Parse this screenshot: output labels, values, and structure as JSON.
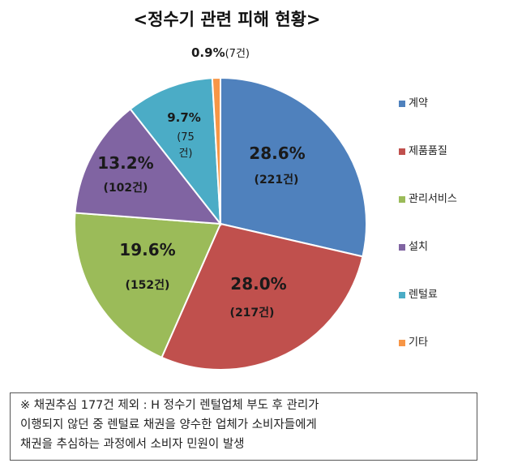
{
  "chart_data": {
    "type": "pie",
    "title": "<정수기 관련 피해 현황>",
    "slices": [
      {
        "name": "계약",
        "percent": "28.6%",
        "count": "(221건)",
        "value": 28.6,
        "color": "#4F81BD"
      },
      {
        "name": "제품품질",
        "percent": "28.0%",
        "count": "(217건)",
        "value": 28.0,
        "color": "#C0504D"
      },
      {
        "name": "관리서비스",
        "percent": "19.6%",
        "count": "(152건)",
        "value": 19.6,
        "color": "#9BBB59"
      },
      {
        "name": "설치",
        "percent": "13.2%",
        "count": "(102건)",
        "value": 13.2,
        "color": "#8064A2"
      },
      {
        "name": "렌털료",
        "percent": "9.7%",
        "count_line1": "(75",
        "count_line2": "건)",
        "value": 9.7,
        "color": "#4BACC6"
      },
      {
        "name": "기타",
        "percent": "0.9%",
        "count": "(7건)",
        "value": 0.9,
        "color": "#F79646"
      }
    ],
    "legend_position": "right"
  },
  "note": {
    "line1": "※ 채권추심 177건 제외 : H 정수기 렌털업체 부도 후 관리가",
    "line2": "이행되지 않던 중 렌털료 채권을 양수한 업체가 소비자들에게",
    "line3": "채권을 추심하는 과정에서 소비자 민원이 발생"
  }
}
